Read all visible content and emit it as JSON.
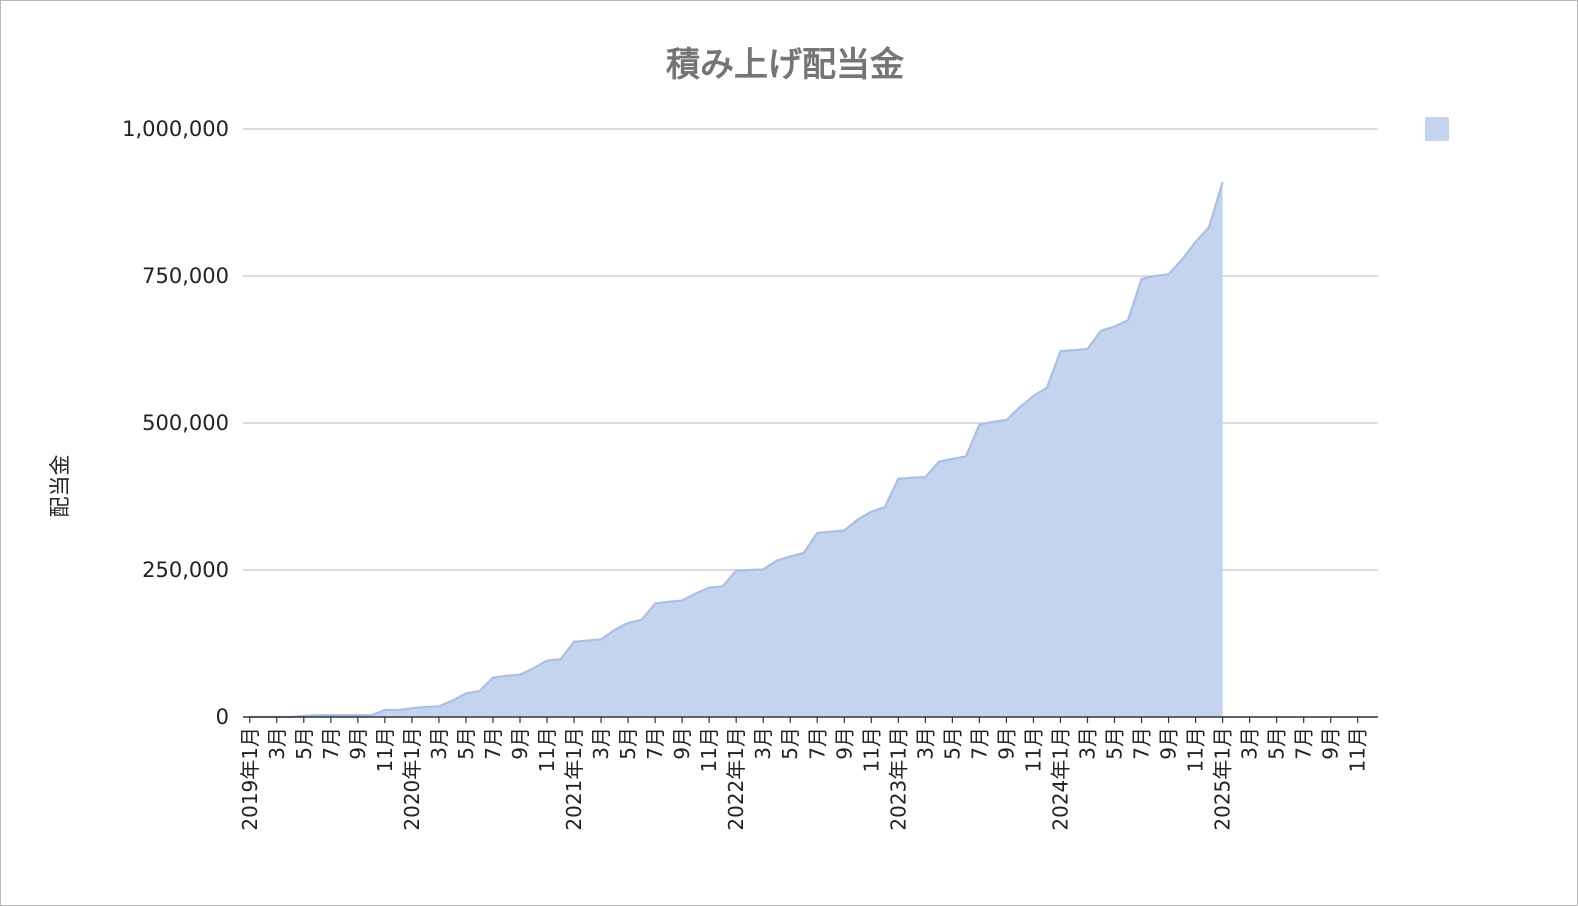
{
  "chart_data": {
    "type": "area",
    "title": "積み上げ配当金",
    "ylabel": "配当金",
    "xlabel": "",
    "ylim": [
      0,
      1000000
    ],
    "grid": true,
    "legend": "right",
    "y_ticks": [
      0,
      250000,
      500000,
      750000,
      1000000
    ],
    "y_tick_labels": [
      "0",
      "250,000",
      "500,000",
      "750,000",
      "1,000,000"
    ],
    "x_tick_labels": [
      "2019年1月",
      "3月",
      "5月",
      "7月",
      "9月",
      "11月",
      "2020年1月",
      "3月",
      "5月",
      "7月",
      "9月",
      "11月",
      "2021年1月",
      "3月",
      "5月",
      "7月",
      "9月",
      "11月",
      "2022年1月",
      "3月",
      "5月",
      "7月",
      "9月",
      "11月",
      "2023年1月",
      "3月",
      "5月",
      "7月",
      "9月",
      "11月",
      "2024年1月",
      "3月",
      "5月",
      "7月",
      "9月",
      "11月",
      "2025年1月",
      "3月",
      "5月",
      "7月",
      "9月",
      "11月"
    ],
    "x_start": "2019-01",
    "x_end": "2025-12",
    "series": [
      {
        "name": "",
        "color": "#c5d4ee",
        "line_color": "#a9bfe3",
        "values": [
          0,
          0,
          0,
          0,
          2000,
          3000,
          3000,
          3000,
          3000,
          3000,
          12000,
          12000,
          15000,
          17000,
          18000,
          28000,
          40000,
          44000,
          67000,
          70000,
          72000,
          83000,
          96000,
          98000,
          128000,
          130000,
          132000,
          148000,
          160000,
          165000,
          193000,
          196000,
          198000,
          210000,
          220000,
          222000,
          249000,
          250000,
          251000,
          266000,
          273000,
          279000,
          313000,
          315000,
          317000,
          336000,
          349000,
          357000,
          405000,
          407000,
          408000,
          434000,
          439000,
          443000,
          497000,
          502000,
          505000,
          527000,
          546000,
          560000,
          622000,
          624000,
          626000,
          657000,
          664000,
          675000,
          745000,
          750000,
          753000,
          778000,
          808000,
          833000,
          910000
        ]
      }
    ]
  }
}
